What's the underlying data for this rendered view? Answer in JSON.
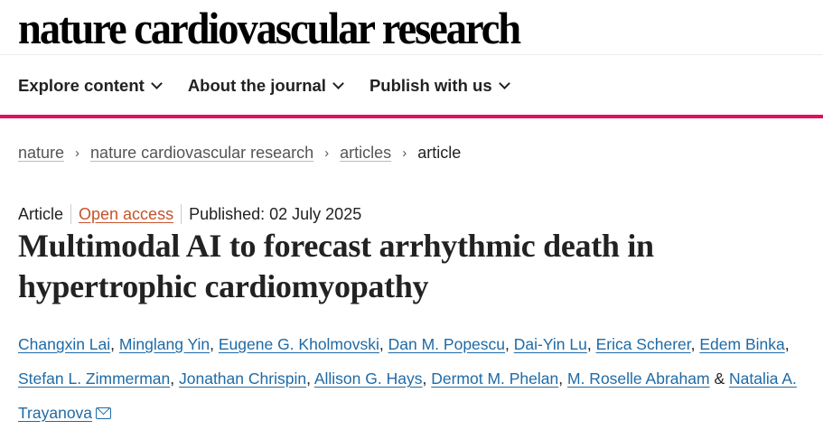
{
  "site": {
    "logo": "nature cardiovascular research",
    "accent_color": "#e0105e"
  },
  "nav": {
    "items": [
      {
        "label": "Explore content",
        "icon": "chevron-down-icon"
      },
      {
        "label": "About the journal",
        "icon": "chevron-down-icon"
      },
      {
        "label": "Publish with us",
        "icon": "chevron-down-icon"
      }
    ]
  },
  "breadcrumb": {
    "items": [
      "nature",
      "nature cardiovascular research",
      "articles"
    ],
    "current": "article"
  },
  "article": {
    "type": "Article",
    "access": "Open access",
    "published": "Published: 02 July 2025",
    "title": "Multimodal AI to forecast arrhythmic death in hypertrophic cardiomyopathy",
    "authors": [
      "Changxin Lai",
      "Minglang Yin",
      "Eugene G. Kholmovski",
      "Dan M. Popescu",
      "Dai-Yin Lu",
      "Erica Scherer",
      "Edem Binka",
      "Stefan L. Zimmerman",
      "Jonathan Chrispin",
      "Allison G. Hays",
      "Dermot M. Phelan",
      "M. Roselle Abraham"
    ],
    "last_author": "Natalia A. Trayanova",
    "ampersand": "&",
    "comma": ","
  }
}
